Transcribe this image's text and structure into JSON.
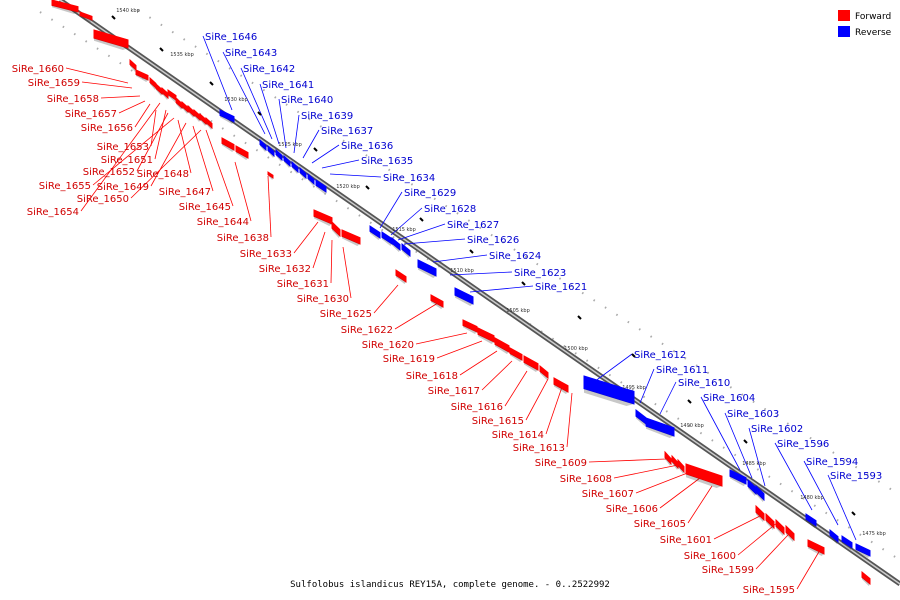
{
  "caption": "Sulfolobus islandicus REY15A, complete genome. - 0..2522992",
  "legend": [
    {
      "key": "forward",
      "label": "Forward",
      "color": "#ff0000"
    },
    {
      "key": "reverse",
      "label": "Reverse",
      "color": "#0000ff"
    }
  ],
  "colors": {
    "forward": "#ff0000",
    "reverse": "#0000ff",
    "axis": "#777777",
    "dots": "#aaaaaa"
  },
  "ticks": [
    "1540 kbp",
    "1535 kbp",
    "1530 kbp",
    "1525 kbp",
    "1520 kbp",
    "1515 kbp",
    "1510 kbp",
    "1505 kbp",
    "1500 kbp",
    "1495 kbp",
    "1490 kbp",
    "1485 kbp",
    "1480 kbp",
    "1475 kbp"
  ],
  "forward_genes": [
    "SiRe_1660",
    "SiRe_1659",
    "SiRe_1658",
    "SiRe_1657",
    "SiRe_1656",
    "SiRe_1653",
    "SiRe_1651",
    "SiRe_1652",
    "SiRe_1648",
    "SiRe_1655",
    "SiRe_1649",
    "SiRe_1647",
    "SiRe_1650",
    "SiRe_1645",
    "SiRe_1654",
    "SiRe_1644",
    "SiRe_1638",
    "SiRe_1633",
    "SiRe_1632",
    "SiRe_1631",
    "SiRe_1630",
    "SiRe_1625",
    "SiRe_1622",
    "SiRe_1620",
    "SiRe_1619",
    "SiRe_1618",
    "SiRe_1617",
    "SiRe_1616",
    "SiRe_1615",
    "SiRe_1614",
    "SiRe_1613",
    "SiRe_1609",
    "SiRe_1608",
    "SiRe_1607",
    "SiRe_1606",
    "SiRe_1605",
    "SiRe_1601",
    "SiRe_1600",
    "SiRe_1599",
    "SiRe_1595"
  ],
  "reverse_genes": [
    "SiRe_1646",
    "SiRe_1643",
    "SiRe_1642",
    "SiRe_1641",
    "SiRe_1640",
    "SiRe_1639",
    "SiRe_1637",
    "SiRe_1636",
    "SiRe_1635",
    "SiRe_1634",
    "SiRe_1629",
    "SiRe_1628",
    "SiRe_1627",
    "SiRe_1626",
    "SiRe_1624",
    "SiRe_1623",
    "SiRe_1621",
    "SiRe_1612",
    "SiRe_1611",
    "SiRe_1610",
    "SiRe_1604",
    "SiRe_1603",
    "SiRe_1602",
    "SiRe_1596",
    "SiRe_1594",
    "SiRe_1593"
  ]
}
